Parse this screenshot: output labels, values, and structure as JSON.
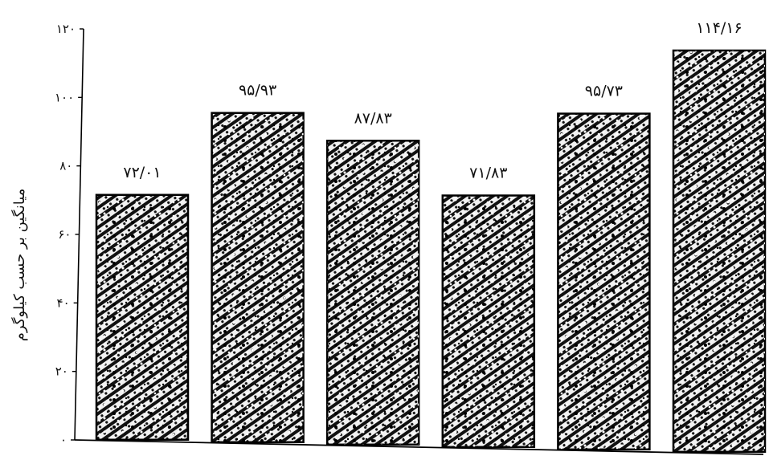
{
  "chart_data": {
    "type": "bar",
    "title": "",
    "xlabel": "",
    "ylabel": "میانگین بر حسب کیلوگرم",
    "ylim": [
      0,
      120
    ],
    "yticks": [
      0,
      20,
      40,
      60,
      80,
      100,
      120
    ],
    "ytick_labels": [
      "۰",
      "۲۰",
      "۴۰",
      "۶۰",
      "۸۰",
      "۱۰۰",
      "۱۲۰"
    ],
    "categories": [
      "",
      "",
      "",
      "",
      "",
      ""
    ],
    "values": [
      72.01,
      95.93,
      87.83,
      71.83,
      95.73,
      114.16
    ],
    "value_labels": [
      "۷۲/۰۱",
      "۹۵/۹۳",
      "۸۷/۸۳",
      "۷۱/۸۳",
      "۹۵/۷۳",
      "۱۱۴/۱۶"
    ],
    "grid": false,
    "bar_pattern": "black-white hatched texture",
    "colors": {
      "bar_dark": "#111111",
      "bar_light": "#f2f2f2",
      "axis": "#000000"
    }
  }
}
